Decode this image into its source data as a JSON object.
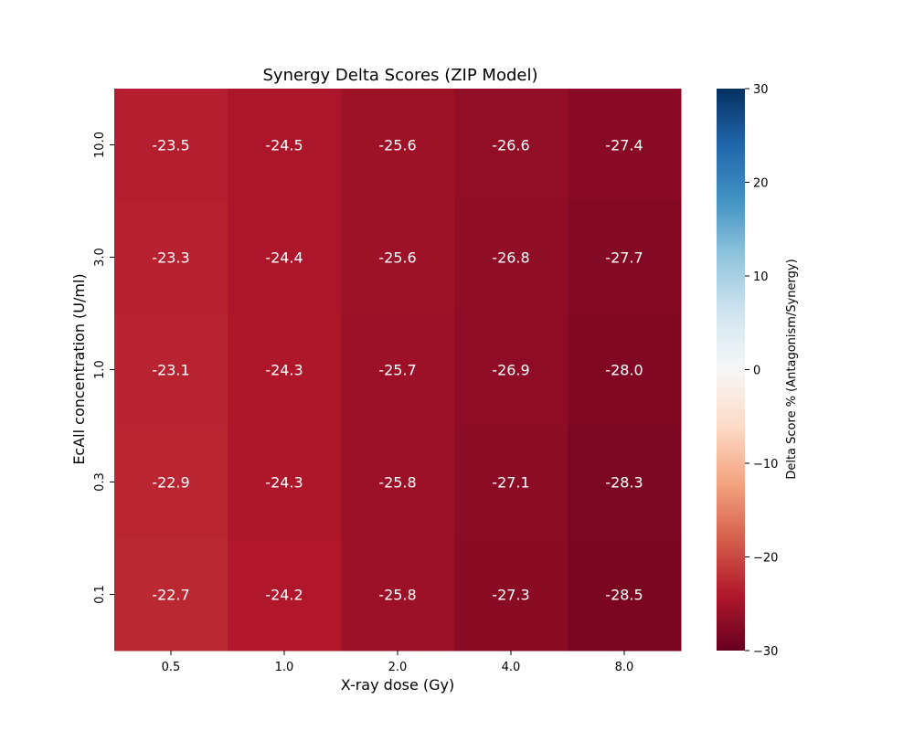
{
  "chart_data": {
    "type": "heatmap",
    "title": "Synergy Delta Scores (ZIP Model)",
    "xlabel": "X-ray dose (Gy)",
    "ylabel": "EcAll concentration (U/ml)",
    "x_categories": [
      "0.5",
      "1.0",
      "2.0",
      "4.0",
      "8.0"
    ],
    "y_categories": [
      "10.0",
      "3.0",
      "1.0",
      "0.3",
      "0.1"
    ],
    "values": [
      [
        -23.5,
        -24.5,
        -25.6,
        -26.6,
        -27.4
      ],
      [
        -23.3,
        -24.4,
        -25.6,
        -26.8,
        -27.7
      ],
      [
        -23.1,
        -24.3,
        -25.7,
        -26.9,
        -28.0
      ],
      [
        -22.9,
        -24.3,
        -25.8,
        -27.1,
        -28.3
      ],
      [
        -22.7,
        -24.2,
        -25.8,
        -27.3,
        -28.5
      ]
    ],
    "colorbar": {
      "label": "Delta Score % (Antagonism/Synergy)",
      "range": [
        -30,
        30
      ],
      "ticks": [
        30,
        20,
        10,
        0,
        -10,
        -20,
        -30
      ],
      "tick_labels": [
        "30",
        "20",
        "10",
        "0",
        "−10",
        "−20",
        "−30"
      ],
      "colormap": "RdBu"
    },
    "grid": false
  }
}
